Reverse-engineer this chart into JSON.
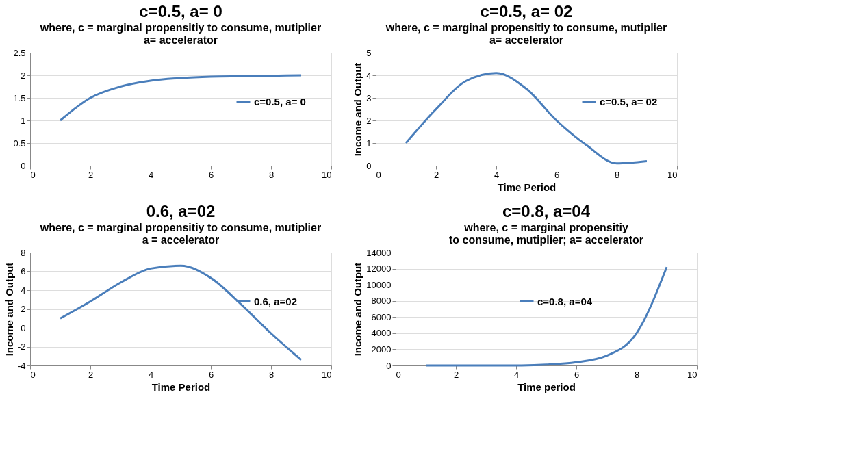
{
  "chart_data": [
    {
      "type": "line",
      "title": "c=0.5, a= 0",
      "subtitle": "where, c =  marginal propensitiy to consume, mutiplier\na=  accelerator",
      "x": [
        1,
        2,
        3,
        4,
        5,
        6,
        7,
        8,
        9
      ],
      "series": [
        {
          "name": "c=0.5, a= 0",
          "color": "#4a7ebb",
          "values": [
            1,
            1.5,
            1.75,
            1.88,
            1.94,
            1.97,
            1.98,
            1.99,
            2.0
          ]
        }
      ],
      "xlim": [
        0,
        10
      ],
      "xticks": [
        0,
        2,
        4,
        6,
        8,
        10
      ],
      "ylim": [
        0,
        2.5
      ],
      "yticks": [
        0,
        0.5,
        1,
        1.5,
        2,
        2.5
      ],
      "grid": "y",
      "legend": "right",
      "marker": "none",
      "line_style": "solid"
    },
    {
      "type": "line",
      "title": "c=0.5, a= 02",
      "subtitle": "where, c =  marginal propensitiy to consume, mutiplier\na=  accelerator",
      "xlabel": "Time Period",
      "ylabel": "Income and Output",
      "x": [
        1,
        2,
        3,
        4,
        5,
        6,
        7,
        8,
        9
      ],
      "series": [
        {
          "name": "c=0.5, a= 02",
          "color": "#4a7ebb",
          "values": [
            1,
            2.5,
            3.75,
            4.1,
            3.4,
            2.0,
            0.9,
            0.1,
            0.2
          ]
        }
      ],
      "xlim": [
        0,
        10
      ],
      "xticks": [
        0,
        2,
        4,
        6,
        8,
        10
      ],
      "ylim": [
        0,
        5
      ],
      "yticks": [
        0,
        1,
        2,
        3,
        4,
        5
      ],
      "grid": "y",
      "legend": "right",
      "marker": "none",
      "line_style": "solid"
    },
    {
      "type": "line",
      "title": "0.6, a=02",
      "subtitle": "where, c =  marginal propensitiy to consume, mutiplier\na =  accelerator",
      "xlabel": "Time Period",
      "ylabel": "Income and Output",
      "x": [
        1,
        2,
        3,
        4,
        5,
        6,
        7,
        8,
        9
      ],
      "series": [
        {
          "name": "0.6, a=02",
          "color": "#4a7ebb",
          "values": [
            1,
            2.8,
            4.8,
            6.3,
            6.6,
            5.3,
            2.5,
            -0.6,
            -3.4
          ]
        }
      ],
      "xlim": [
        0,
        10
      ],
      "xticks": [
        0,
        2,
        4,
        6,
        8,
        10
      ],
      "ylim": [
        -4,
        8
      ],
      "yticks": [
        -4,
        -2,
        0,
        2,
        4,
        6,
        8
      ],
      "grid": "y",
      "legend": "right",
      "marker": "none",
      "line_style": "solid"
    },
    {
      "type": "line",
      "title": "c=0.8, a=04",
      "subtitle": "where, c =  marginal propensitiy\nto consume, mutiplier;  a=  accelerator",
      "xlabel": "Time period",
      "ylabel": "Income and Output",
      "x": [
        1,
        2,
        3,
        4,
        5,
        6,
        7,
        8,
        9
      ],
      "series": [
        {
          "name": "c=0.8, a=04",
          "color": "#4a7ebb",
          "values": [
            0,
            0,
            0,
            0,
            100,
            400,
            1200,
            4000,
            12200
          ]
        }
      ],
      "xlim": [
        0,
        10
      ],
      "xticks": [
        0,
        2,
        4,
        6,
        8,
        10
      ],
      "ylim": [
        0,
        14000
      ],
      "yticks": [
        0,
        2000,
        4000,
        6000,
        8000,
        10000,
        12000,
        14000
      ],
      "grid": "y",
      "legend": "right",
      "marker": "none",
      "line_style": "solid"
    }
  ]
}
